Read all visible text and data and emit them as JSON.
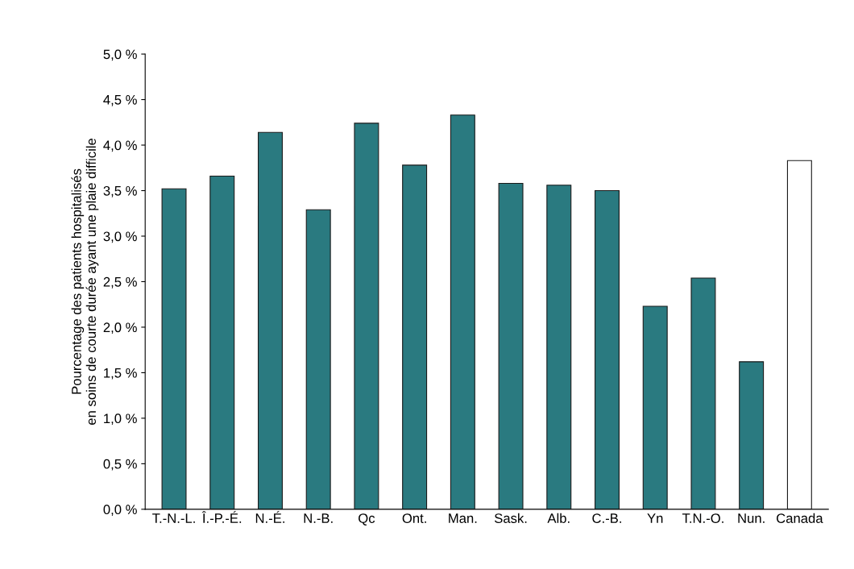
{
  "chart_data": {
    "type": "bar",
    "ylabel": "Pourcentage des patients hospitalisés\nen soins de courte durée ayant une plaie difficile",
    "categories": [
      "T.-N.-L.",
      "Î.-P.-É.",
      "N.-É.",
      "N.-B.",
      "Qc",
      "Ont.",
      "Man.",
      "Sask.",
      "Alb.",
      "C.-B.",
      "Yn",
      "T.N.-O.",
      "Nun.",
      "Canada"
    ],
    "values": [
      3.52,
      3.66,
      4.14,
      3.29,
      4.24,
      3.78,
      4.33,
      3.58,
      3.56,
      3.5,
      2.23,
      2.54,
      1.62,
      3.83
    ],
    "colors": [
      "#2a7a80",
      "#2a7a80",
      "#2a7a80",
      "#2a7a80",
      "#2a7a80",
      "#2a7a80",
      "#2a7a80",
      "#2a7a80",
      "#2a7a80",
      "#2a7a80",
      "#2a7a80",
      "#2a7a80",
      "#2a7a80",
      "#ffffff"
    ],
    "ylim": [
      0,
      5
    ],
    "yticks": [
      {
        "value": 0,
        "label": "0,0 %"
      },
      {
        "value": 0.5,
        "label": "0,5 %"
      },
      {
        "value": 1,
        "label": "1,0 %"
      },
      {
        "value": 1.5,
        "label": "1,5 %"
      },
      {
        "value": 2,
        "label": "2,0 %"
      },
      {
        "value": 2.5,
        "label": "2,5 %"
      },
      {
        "value": 3,
        "label": "3,0 %"
      },
      {
        "value": 3.5,
        "label": "3,5 %"
      },
      {
        "value": 4,
        "label": "4,0 %"
      },
      {
        "value": 4.5,
        "label": "4,5 %"
      },
      {
        "value": 5,
        "label": "5,0 %"
      }
    ],
    "grid": false,
    "legend": false
  }
}
